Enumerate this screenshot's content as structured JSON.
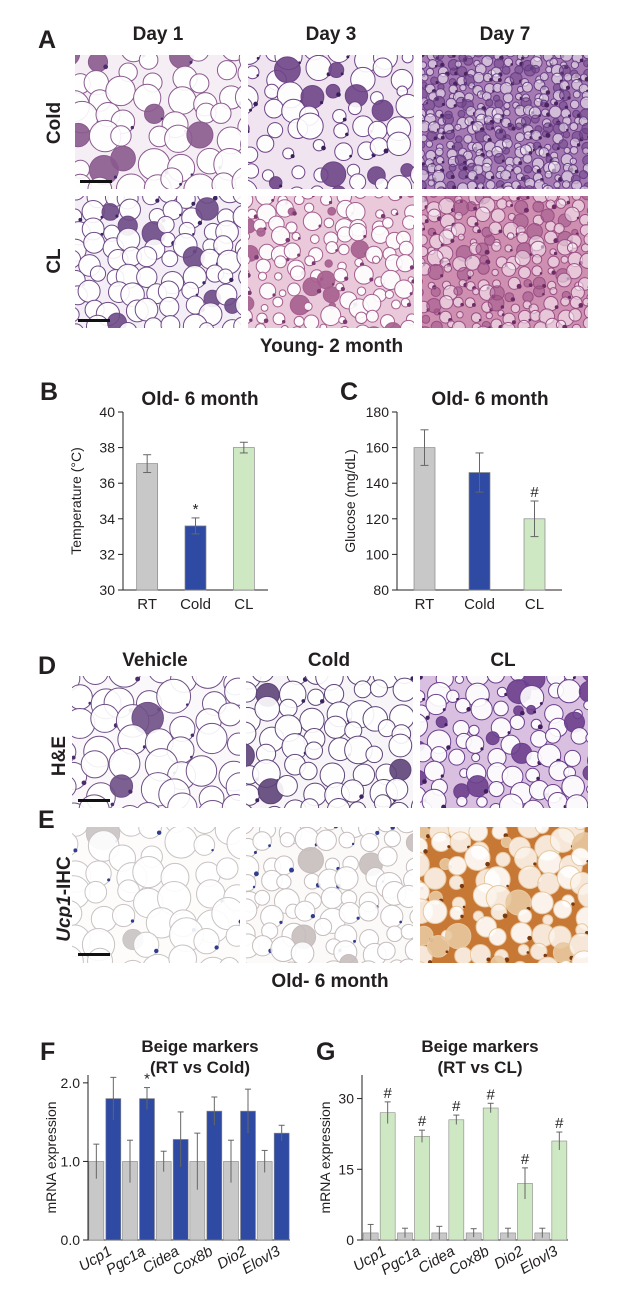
{
  "panel_labels": {
    "A": "A",
    "B": "B",
    "C": "C",
    "D": "D",
    "E": "E",
    "F": "F",
    "G": "G"
  },
  "panelA": {
    "columns": [
      "Day 1",
      "Day 3",
      "Day 7"
    ],
    "rows": [
      "Cold",
      "CL"
    ],
    "caption": "Young- 2 month"
  },
  "panelD": {
    "columns": [
      "Vehicle",
      "Cold",
      "CL"
    ],
    "row_he": "H&E",
    "row_ihc_italic": "Ucp1",
    "row_ihc_rest": "-IHC",
    "caption": "Old- 6 month"
  },
  "chart_data": [
    {
      "id": "B",
      "type": "bar",
      "title": "Old- 6 month",
      "ylabel": "Temperature (°C)",
      "categories": [
        "RT",
        "Cold",
        "CL"
      ],
      "values": [
        37.1,
        33.6,
        38.0
      ],
      "errors": [
        0.5,
        0.45,
        0.3
      ],
      "colors": [
        "#c8c8c8",
        "#2e4aa3",
        "#cfe8c4"
      ],
      "annotations": [
        "",
        "*",
        ""
      ],
      "ylim": [
        30,
        40
      ],
      "yticks": [
        30,
        32,
        34,
        36,
        38,
        40
      ]
    },
    {
      "id": "C",
      "type": "bar",
      "title": "Old- 6 month",
      "ylabel": "Glucose (mg/dL)",
      "categories": [
        "RT",
        "Cold",
        "CL"
      ],
      "values": [
        160,
        146,
        120
      ],
      "errors": [
        10,
        11,
        10
      ],
      "colors": [
        "#c8c8c8",
        "#2e4aa3",
        "#cfe8c4"
      ],
      "annotations": [
        "",
        "",
        "#"
      ],
      "ylim": [
        80,
        180
      ],
      "yticks": [
        80,
        100,
        120,
        140,
        160,
        180
      ]
    },
    {
      "id": "F",
      "type": "bar",
      "title": "Beige markers",
      "subtitle": "(RT vs Cold)",
      "ylabel": "mRNA expression",
      "categories": [
        "Ucp1",
        "Pgc1a",
        "Cidea",
        "Cox8b",
        "Dio2",
        "Elovl3"
      ],
      "series": [
        {
          "values": [
            1.0,
            1.0,
            1.0,
            1.0,
            1.0,
            1.0
          ],
          "errors": [
            0.22,
            0.27,
            0.13,
            0.36,
            0.27,
            0.14
          ],
          "color": "#c8c8c8"
        },
        {
          "values": [
            1.8,
            1.8,
            1.28,
            1.64,
            1.64,
            1.36
          ],
          "errors": [
            0.27,
            0.14,
            0.35,
            0.18,
            0.28,
            0.1
          ],
          "color": "#2e4aa3"
        }
      ],
      "annotations": [
        "*",
        "*",
        "",
        "",
        "",
        ""
      ],
      "ylim": [
        0,
        2.1
      ],
      "yticks": [
        0.0,
        1.0,
        2.0
      ],
      "ytick_labels": [
        "0.0",
        "1.0",
        "2.0"
      ]
    },
    {
      "id": "G",
      "type": "bar",
      "title": "Beige markers",
      "subtitle": "(RT vs CL)",
      "ylabel": "mRNA expression",
      "categories": [
        "Ucp1",
        "Pgc1a",
        "Cidea",
        "Cox8b",
        "Dio2",
        "Elovl3"
      ],
      "series": [
        {
          "values": [
            1.5,
            1.5,
            1.5,
            1.5,
            1.5,
            1.5
          ],
          "errors": [
            1.8,
            1.0,
            1.4,
            0.9,
            1.0,
            1.0
          ],
          "color": "#c8c8c8"
        },
        {
          "values": [
            27,
            22,
            25.5,
            28,
            12,
            21
          ],
          "errors": [
            2.3,
            1.3,
            1.0,
            1.0,
            3.3,
            1.9
          ],
          "color": "#cfe8c4"
        }
      ],
      "annotations": [
        "#",
        "#",
        "#",
        "#",
        "#",
        "#"
      ],
      "ylim": [
        0,
        35
      ],
      "yticks": [
        0,
        15,
        30
      ],
      "ytick_labels": [
        "0",
        "15",
        "30"
      ]
    }
  ]
}
